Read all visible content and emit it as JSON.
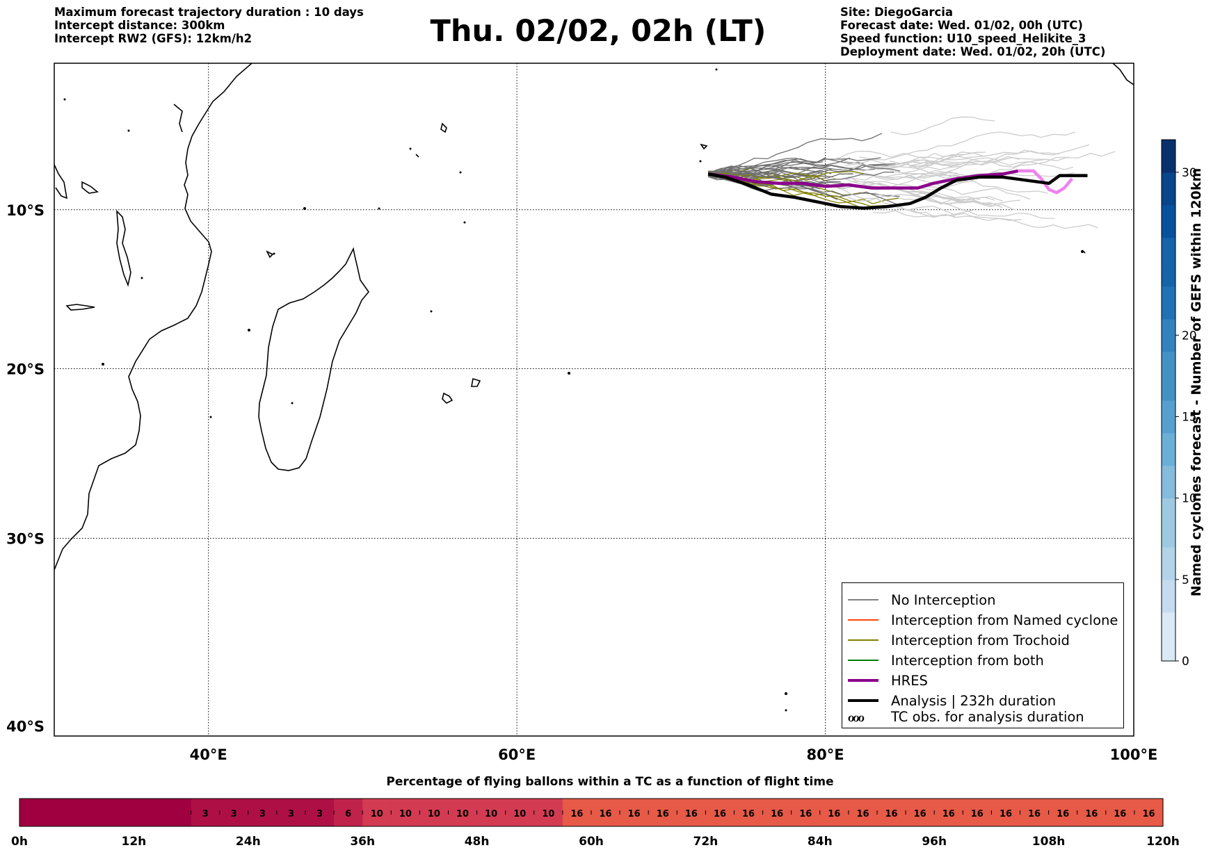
{
  "header": {
    "left_lines": [
      "Maximum forecast trajectory duration : 10 days",
      "Intercept distance: 300km",
      "Intercept RW2 (GFS):  12km/h2"
    ],
    "title": "Thu. 02/02, 02h (LT)",
    "right_lines": [
      "Site: DiegoGarcia",
      "Forecast date: Wed. 01/02, 00h (UTC)",
      "Speed function: U10_speed_Helikite_3",
      "Deployment date: Wed. 01/02, 20h (UTC)"
    ]
  },
  "legend": {
    "items": [
      {
        "label": "No Interception",
        "color": "#808080",
        "width": 1.5
      },
      {
        "label": "Interception from Named cyclone",
        "color": "#ff4500",
        "width": 1.5
      },
      {
        "label": "Interception from Trochoid",
        "color": "#808000",
        "width": 1.5
      },
      {
        "label": "Interception from both",
        "color": "#008000",
        "width": 1.5
      },
      {
        "label": "HRES",
        "color": "#8b008b",
        "width": 4
      },
      {
        "label": "Analysis | 232h duration",
        "color": "#000000",
        "width": 4
      }
    ],
    "tc_obs_label": "TC obs. for analysis duration",
    "tc_obs_glyph": "ℴℴℴ"
  },
  "chart_data": [
    {
      "type": "line",
      "x_ticks": [
        "40°E",
        "60°E",
        "80°E",
        "100°E"
      ],
      "y_ticks": [
        "10°S",
        "20°S",
        "30°S",
        "40°S"
      ],
      "xlim": [
        30,
        100
      ],
      "ylim": [
        -40.5,
        -0.5
      ],
      "grid": true,
      "colors": {
        "hres": "#8b008b",
        "hres_late": "#ee82ee",
        "analysis": "#000000",
        "no_interception": "#6e6e6e",
        "no_interception_late": "#cccccc",
        "trochoid": "#808000"
      },
      "series": [
        {
          "name": "HRES",
          "x": [
            72.4,
            74,
            75.5,
            77,
            78.5,
            80,
            81.5,
            83,
            84.5,
            86,
            87,
            88.5,
            90,
            91.5,
            92.5,
            93.5,
            94,
            94.5,
            95,
            95.5,
            96
          ],
          "y": [
            -7.7,
            -7.9,
            -8.2,
            -8.3,
            -8.3,
            -8.5,
            -8.4,
            -8.6,
            -8.6,
            -8.6,
            -8.3,
            -8.0,
            -7.8,
            -7.7,
            -7.5,
            -7.5,
            -8.0,
            -8.7,
            -8.9,
            -8.6,
            -8.0
          ]
        },
        {
          "name": "Analysis | 232h duration",
          "x": [
            72.4,
            73.5,
            75,
            76.5,
            78,
            79.5,
            81,
            82.5,
            84,
            85.5,
            86.5,
            87.5,
            88.5,
            90,
            91.5,
            93,
            94.5,
            95.2,
            96,
            97
          ],
          "y": [
            -7.7,
            -7.9,
            -8.4,
            -9.0,
            -9.2,
            -9.5,
            -9.8,
            -9.9,
            -9.8,
            -9.6,
            -9.2,
            -8.6,
            -8.1,
            -7.9,
            -7.9,
            -8.1,
            -8.3,
            -7.8,
            -7.8,
            -7.8
          ]
        }
      ]
    },
    {
      "type": "heatmap",
      "name": "Named cyclones forecast - Number of GEFS within 120km",
      "ticks": [
        0,
        5,
        10,
        15,
        20,
        30
      ],
      "range": [
        0,
        32
      ]
    },
    {
      "type": "bar",
      "title": "Percentage of flying ballons within a TC as a function of flight time",
      "x_ticks": [
        "0h",
        "12h",
        "24h",
        "36h",
        "48h",
        "60h",
        "72h",
        "84h",
        "96h",
        "108h",
        "120h"
      ],
      "values": [
        0,
        0,
        0,
        0,
        0,
        0,
        3,
        3,
        3,
        3,
        3,
        6,
        10,
        10,
        10,
        10,
        10,
        10,
        10,
        16,
        16,
        16,
        16,
        16,
        16,
        16,
        16,
        16,
        16,
        16,
        16,
        16,
        16,
        16,
        16,
        16,
        16,
        16,
        16,
        16
      ]
    }
  ]
}
